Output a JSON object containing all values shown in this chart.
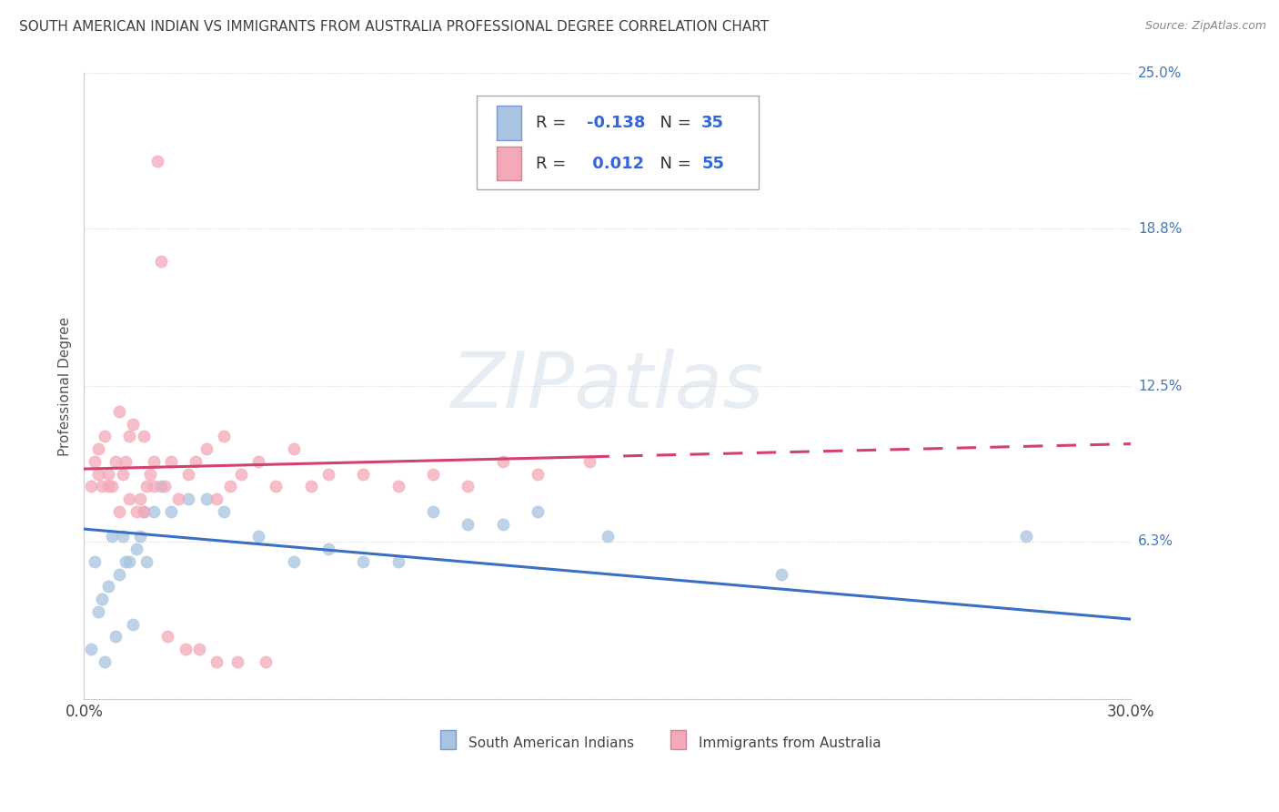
{
  "title": "SOUTH AMERICAN INDIAN VS IMMIGRANTS FROM AUSTRALIA PROFESSIONAL DEGREE CORRELATION CHART",
  "source": "Source: ZipAtlas.com",
  "ylabel": "Professional Degree",
  "xlim": [
    0.0,
    30.0
  ],
  "ylim": [
    0.0,
    25.0
  ],
  "ytick_vals": [
    0.0,
    6.3,
    12.5,
    18.8,
    25.0
  ],
  "ytick_lbls": [
    "",
    "6.3%",
    "12.5%",
    "18.8%",
    "25.0%"
  ],
  "series1_name": "South American Indians",
  "series1_color": "#a8c4e0",
  "series1_line_color": "#3a6fc4",
  "series1_R": -0.138,
  "series1_N": 35,
  "series2_name": "Immigrants from Australia",
  "series2_color": "#f4a8b8",
  "series2_line_color": "#d44070",
  "series2_R": 0.012,
  "series2_N": 55,
  "background_color": "#ffffff",
  "grid_color": "#d8d8d8",
  "title_color": "#404040",
  "axis_label_color": "#555555",
  "tick_color_right": "#4477bb",
  "watermark_text": "ZIPatlas",
  "legend_square1_face": "#a8c4e0",
  "legend_square1_edge": "#7799cc",
  "legend_square2_face": "#f4a8b8",
  "legend_square2_edge": "#cc8899",
  "series1_x": [
    0.2,
    0.3,
    0.4,
    0.5,
    0.6,
    0.7,
    0.8,
    0.9,
    1.0,
    1.1,
    1.2,
    1.3,
    1.4,
    1.5,
    1.6,
    1.7,
    1.8,
    2.0,
    2.2,
    2.5,
    3.0,
    3.5,
    4.0,
    5.0,
    6.0,
    7.0,
    8.0,
    9.0,
    10.0,
    11.0,
    12.0,
    13.0,
    15.0,
    20.0,
    27.0
  ],
  "series1_y": [
    2.0,
    5.5,
    3.5,
    4.0,
    1.5,
    4.5,
    6.5,
    2.5,
    5.0,
    6.5,
    5.5,
    5.5,
    3.0,
    6.0,
    6.5,
    7.5,
    5.5,
    7.5,
    8.5,
    7.5,
    8.0,
    8.0,
    7.5,
    6.5,
    5.5,
    6.0,
    5.5,
    5.5,
    7.5,
    7.0,
    7.0,
    7.5,
    6.5,
    5.0,
    6.5
  ],
  "series2_x": [
    0.2,
    0.3,
    0.4,
    0.5,
    0.6,
    0.7,
    0.8,
    0.9,
    1.0,
    1.1,
    1.2,
    1.3,
    1.4,
    1.5,
    1.6,
    1.7,
    1.8,
    1.9,
    2.0,
    2.1,
    2.2,
    2.3,
    2.5,
    2.7,
    3.0,
    3.2,
    3.5,
    3.8,
    4.0,
    4.2,
    4.5,
    5.0,
    5.5,
    6.0,
    6.5,
    7.0,
    8.0,
    9.0,
    10.0,
    11.0,
    12.0,
    13.0,
    14.5,
    0.4,
    0.7,
    1.0,
    1.3,
    1.7,
    2.0,
    2.4,
    2.9,
    3.3,
    3.8,
    4.4,
    5.2
  ],
  "series2_y": [
    8.5,
    9.5,
    10.0,
    8.5,
    10.5,
    9.0,
    8.5,
    9.5,
    7.5,
    9.0,
    9.5,
    10.5,
    11.0,
    7.5,
    8.0,
    10.5,
    8.5,
    9.0,
    9.5,
    21.5,
    17.5,
    8.5,
    9.5,
    8.0,
    9.0,
    9.5,
    10.0,
    8.0,
    10.5,
    8.5,
    9.0,
    9.5,
    8.5,
    10.0,
    8.5,
    9.0,
    9.0,
    8.5,
    9.0,
    8.5,
    9.5,
    9.0,
    9.5,
    9.0,
    8.5,
    11.5,
    8.0,
    7.5,
    8.5,
    2.5,
    2.0,
    2.0,
    1.5,
    1.5,
    1.5
  ],
  "blue_line_x0": 0.0,
  "blue_line_y0": 6.8,
  "blue_line_x1": 30.0,
  "blue_line_y1": 3.2,
  "pink_line_x0": 0.0,
  "pink_line_y0": 9.2,
  "pink_line_x1": 30.0,
  "pink_line_y1": 10.2,
  "pink_solid_end_x": 14.5
}
